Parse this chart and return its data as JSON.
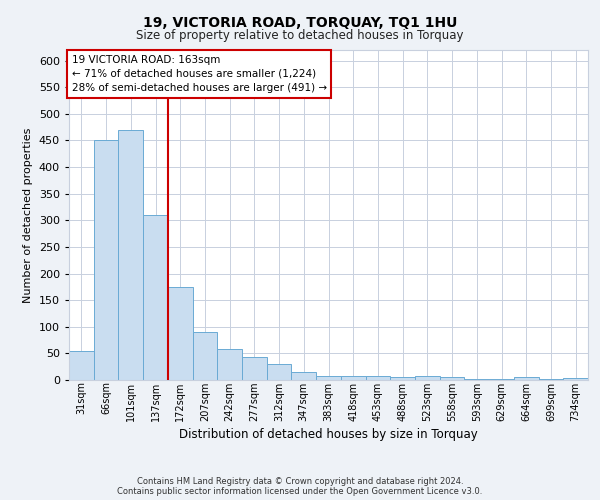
{
  "title": "19, VICTORIA ROAD, TORQUAY, TQ1 1HU",
  "subtitle": "Size of property relative to detached houses in Torquay",
  "xlabel": "Distribution of detached houses by size in Torquay",
  "ylabel": "Number of detached properties",
  "categories": [
    "31sqm",
    "66sqm",
    "101sqm",
    "137sqm",
    "172sqm",
    "207sqm",
    "242sqm",
    "277sqm",
    "312sqm",
    "347sqm",
    "383sqm",
    "418sqm",
    "453sqm",
    "488sqm",
    "523sqm",
    "558sqm",
    "593sqm",
    "629sqm",
    "664sqm",
    "699sqm",
    "734sqm"
  ],
  "values": [
    55,
    450,
    470,
    310,
    175,
    90,
    58,
    43,
    30,
    15,
    8,
    8,
    8,
    5,
    8,
    5,
    2,
    2,
    5,
    2,
    4
  ],
  "bar_color": "#c9ddf0",
  "bar_edge_color": "#6aaad4",
  "vline_x_index": 4,
  "vline_color": "#cc0000",
  "annotation_title": "19 VICTORIA ROAD: 163sqm",
  "annotation_line1": "← 71% of detached houses are smaller (1,224)",
  "annotation_line2": "28% of semi-detached houses are larger (491) →",
  "annotation_box_color": "#ffffff",
  "annotation_box_edge_color": "#cc0000",
  "ylim": [
    0,
    620
  ],
  "yticks": [
    0,
    50,
    100,
    150,
    200,
    250,
    300,
    350,
    400,
    450,
    500,
    550,
    600
  ],
  "bg_color": "#eef2f7",
  "plot_bg_color": "#ffffff",
  "grid_color": "#c8d0de",
  "footer_line1": "Contains HM Land Registry data © Crown copyright and database right 2024.",
  "footer_line2": "Contains public sector information licensed under the Open Government Licence v3.0."
}
